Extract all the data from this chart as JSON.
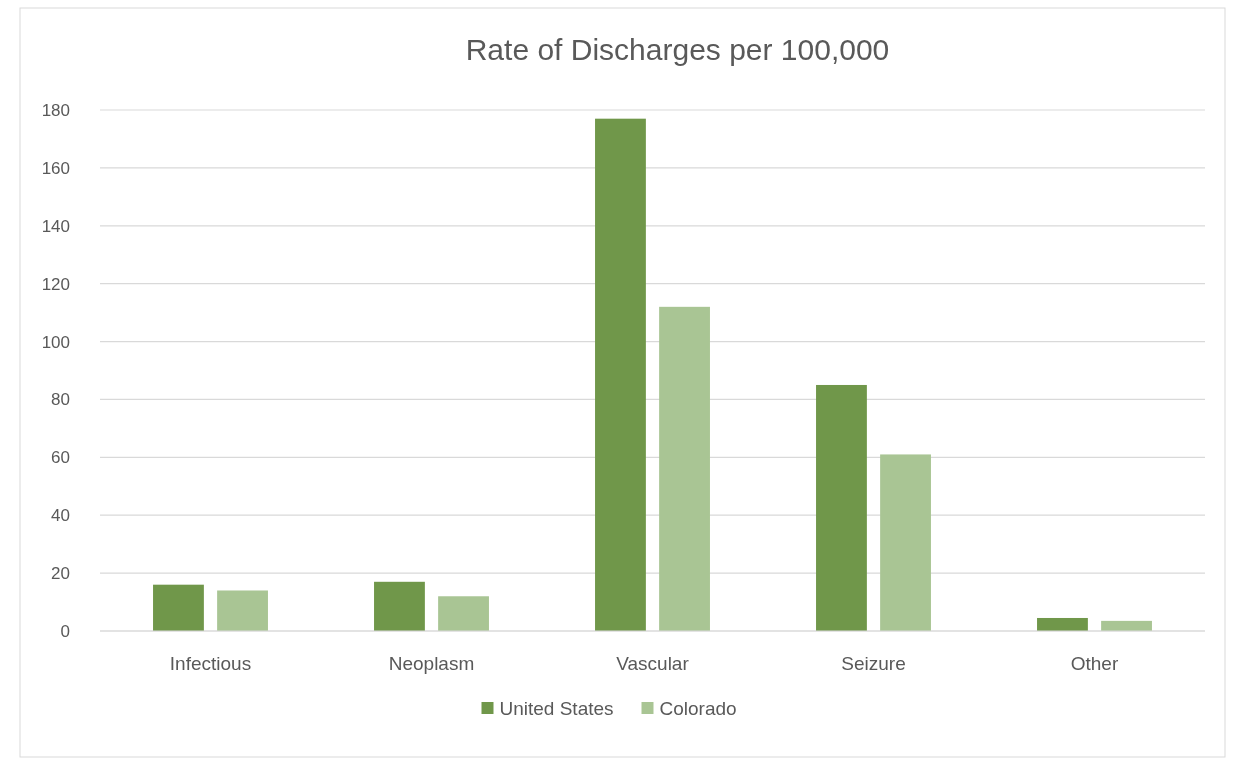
{
  "chart_data": {
    "type": "bar",
    "title": "Rate of Discharges per 100,000",
    "categories": [
      "Infectious",
      "Neoplasm",
      "Vascular",
      "Seizure",
      "Other"
    ],
    "series": [
      {
        "name": "United States",
        "color": "#70974a",
        "values": [
          16,
          17,
          177,
          85,
          4.5
        ]
      },
      {
        "name": "Colorado",
        "color": "#a9c594",
        "values": [
          14,
          12,
          112,
          61,
          3.5
        ]
      }
    ],
    "ylim": [
      0,
      180
    ],
    "yticks": [
      0,
      20,
      40,
      60,
      80,
      100,
      120,
      140,
      160,
      180
    ],
    "grid": "y",
    "legend": "bottom"
  }
}
